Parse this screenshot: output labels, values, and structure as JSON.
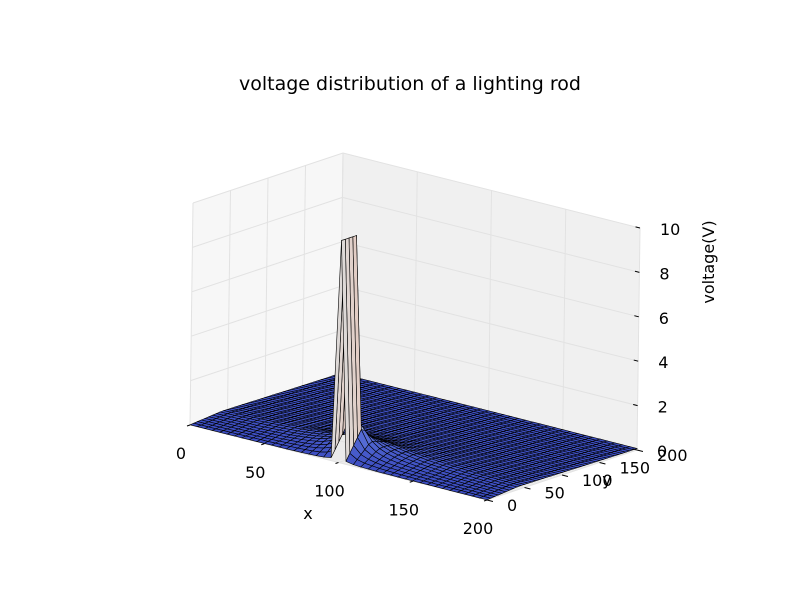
{
  "chart_data": {
    "type": "surface3d",
    "title": "voltage distribution of a lighting rod",
    "xlabel": "x",
    "ylabel": "y",
    "zlabel": "voltage(V)",
    "xlim": [
      0,
      200
    ],
    "ylim": [
      0,
      200
    ],
    "zlim": [
      0,
      10
    ],
    "xticks": [
      0,
      50,
      100,
      150,
      200
    ],
    "yticks": [
      0,
      50,
      100,
      150,
      200
    ],
    "zticks": [
      0,
      2,
      4,
      6,
      8,
      10
    ],
    "grid": true,
    "colormap": "coolwarm",
    "colors": {
      "low": "#3b4cc0",
      "mid": "#dddddd",
      "high": "#b40426",
      "edge": "#000000",
      "pane": "#f2f2f2"
    },
    "rod": {
      "x": 100,
      "y": [
        0,
        20
      ],
      "voltage": 10
    }
  }
}
